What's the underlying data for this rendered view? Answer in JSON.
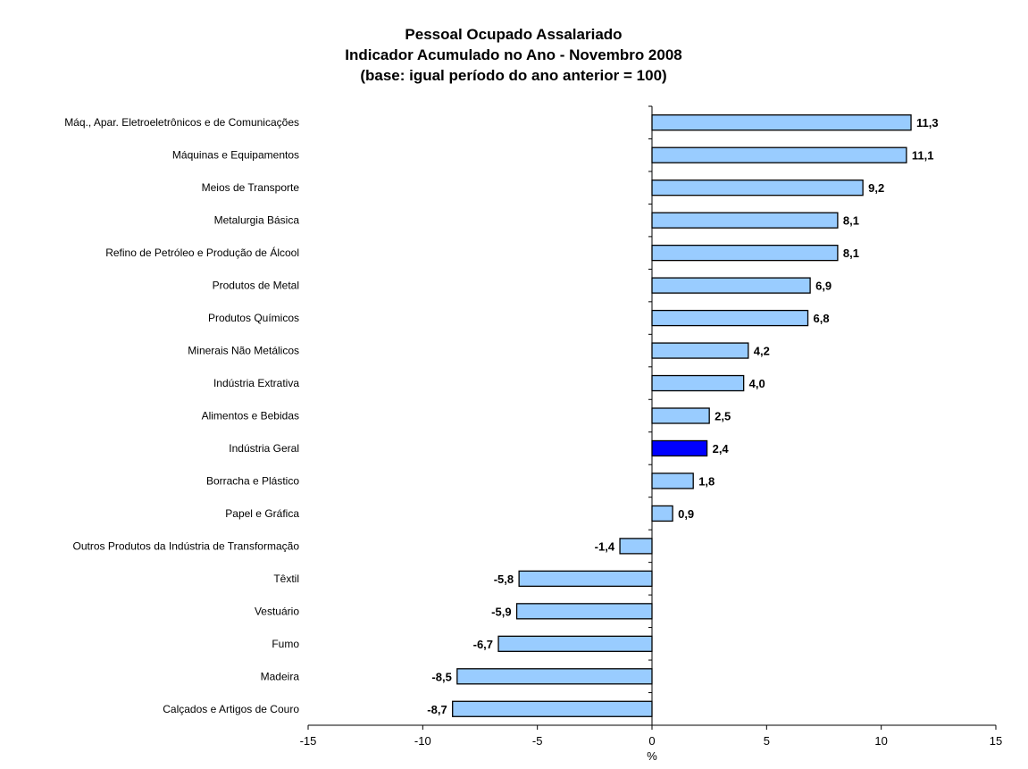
{
  "chart_data": {
    "type": "bar",
    "orientation": "horizontal",
    "title_lines": [
      "Pessoal Ocupado Assalariado",
      "Indicador Acumulado no Ano - Novembro 2008",
      "(base: igual período do ano anterior = 100)"
    ],
    "xlabel": "%",
    "ylabel": "",
    "xlim": [
      -15,
      15
    ],
    "xticks": [
      -15,
      -10,
      -5,
      0,
      5,
      10,
      15
    ],
    "xtick_labels": [
      "-15",
      "-10",
      "-5",
      "0",
      "5",
      "10",
      "15"
    ],
    "grid": false,
    "bar_color": "#99ccff",
    "highlight_color": "#0000ff",
    "highlight_category": "Indústria Geral",
    "categories": [
      "Máq., Apar. Eletroeletrônicos e de Comunicações",
      "Máquinas e Equipamentos",
      "Meios de Transporte",
      "Metalurgia Básica",
      "Refino de Petróleo e Produção de Álcool",
      "Produtos de Metal",
      "Produtos Químicos",
      "Minerais Não Metálicos",
      "Indústria Extrativa",
      "Alimentos e Bebidas",
      "Indústria Geral",
      "Borracha e Plástico",
      "Papel e Gráfica",
      "Outros Produtos da Indústria de Transformação",
      "Têxtil",
      "Vestuário",
      "Fumo",
      "Madeira",
      "Calçados e Artigos de Couro"
    ],
    "values": [
      11.3,
      11.1,
      9.2,
      8.1,
      8.1,
      6.9,
      6.8,
      4.2,
      4.0,
      2.5,
      2.4,
      1.8,
      0.9,
      -1.4,
      -5.8,
      -5.9,
      -6.7,
      -8.5,
      -8.7
    ],
    "value_labels": [
      "11,3",
      "11,1",
      "9,2",
      "8,1",
      "8,1",
      "6,9",
      "6,8",
      "4,2",
      "4,0",
      "2,5",
      "2,4",
      "1,8",
      "0,9",
      "-1,4",
      "-5,8",
      "-5,9",
      "-6,7",
      "-8,5",
      "-8,7"
    ]
  }
}
